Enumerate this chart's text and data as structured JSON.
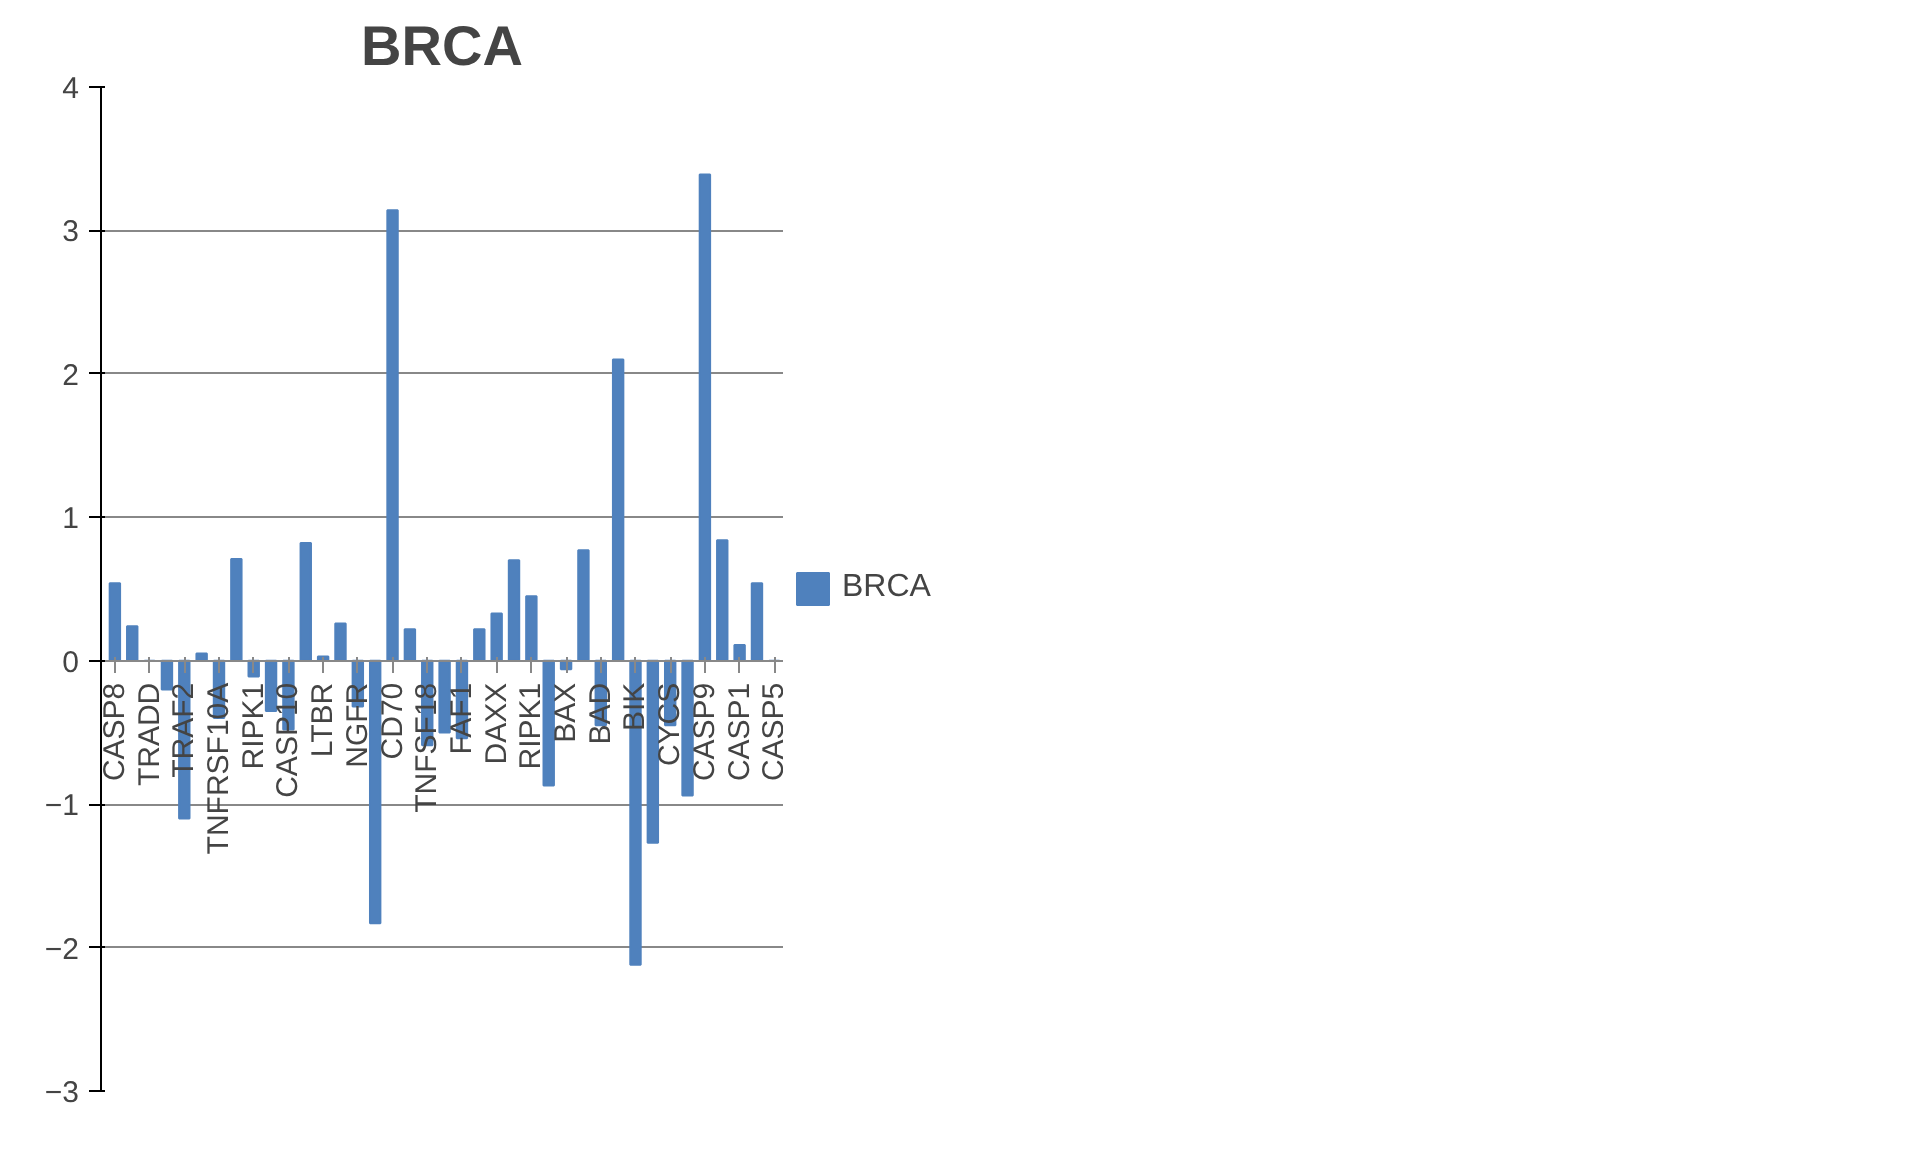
{
  "chart_data": {
    "type": "bar",
    "title": "BRCA",
    "categories": [
      "CASP8",
      null,
      "TRADD",
      null,
      "TRAF2",
      null,
      "TNFRSF10A",
      null,
      "RIPK1",
      null,
      "CASP10",
      null,
      "LTBR",
      null,
      "NGFR",
      null,
      "CD70",
      null,
      "TNFSF18",
      null,
      "FAF1",
      null,
      "DAXX",
      null,
      "RIPK1",
      null,
      "BAX",
      null,
      "BAD",
      null,
      "BIK",
      null,
      "CYCS",
      null,
      "CASP9",
      null,
      "CASP1",
      null,
      "CASP5"
    ],
    "series": [
      {
        "name": "BRCA",
        "color": "#4f81bd",
        "values": [
          0.54,
          0.24,
          0,
          -0.2,
          -1.1,
          0.05,
          -0.4,
          0.71,
          -0.11,
          -0.35,
          -0.48,
          0.82,
          0.03,
          0.26,
          -0.32,
          -1.83,
          3.14,
          0.22,
          -0.59,
          -0.5,
          -0.54,
          0.22,
          0.33,
          0.7,
          0.45,
          -0.87,
          -0.06,
          0.77,
          -0.45,
          2.1,
          -2.12,
          -1.27,
          -0.45,
          -0.94,
          3.39,
          0.84,
          0.11,
          0.54,
          0
        ]
      }
    ],
    "ylim": [
      -3,
      4
    ],
    "yticks": [
      -3,
      -2,
      -1,
      0,
      1,
      2,
      3,
      4
    ],
    "grid": "y",
    "legend": "right"
  }
}
